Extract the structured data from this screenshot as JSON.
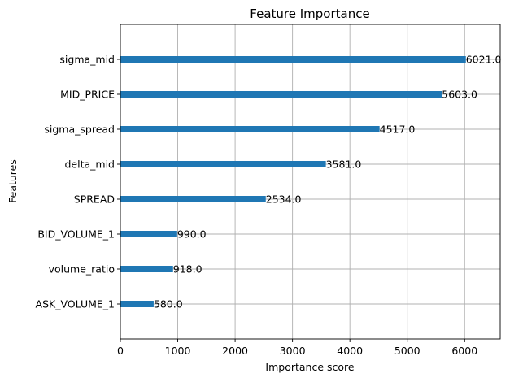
{
  "chart_data": {
    "type": "bar",
    "orientation": "horizontal",
    "title": "Feature Importance",
    "xlabel": "Importance score",
    "ylabel": "Features",
    "xlim": [
      0,
      6620
    ],
    "xticks": [
      0,
      1000,
      2000,
      3000,
      4000,
      5000,
      6000
    ],
    "xtick_labels": [
      "0",
      "1000",
      "2000",
      "3000",
      "4000",
      "5000",
      "6000"
    ],
    "grid": true,
    "bar_color": "#1f77b4",
    "categories": [
      "sigma_mid",
      "MID_PRICE",
      "sigma_spread",
      "delta_mid",
      "SPREAD",
      "BID_VOLUME_1",
      "volume_ratio",
      "ASK_VOLUME_1"
    ],
    "values": [
      6021,
      5603,
      4517,
      3581,
      2534,
      990,
      918,
      580
    ],
    "value_labels": [
      "6021.0",
      "5603.0",
      "4517.0",
      "3581.0",
      "2534.0",
      "990.0",
      "918.0",
      "580.0"
    ]
  }
}
